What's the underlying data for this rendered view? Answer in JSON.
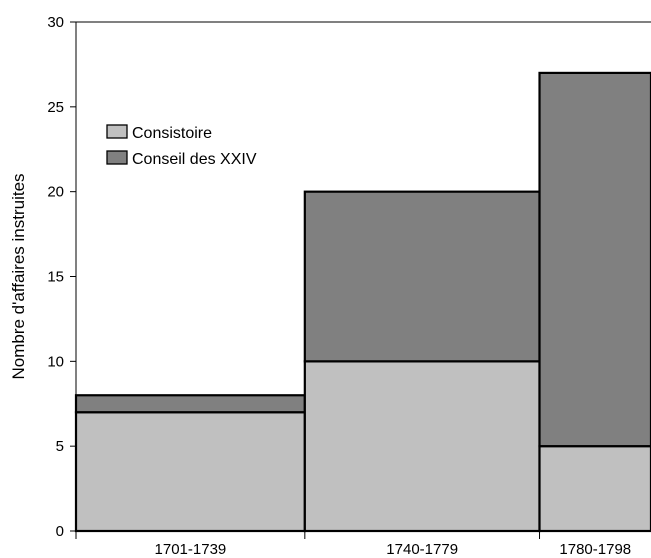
{
  "chart_data": {
    "type": "bar",
    "stacked": true,
    "categories": [
      "1701-1739",
      "1740-1779",
      "1780-1798"
    ],
    "category_spans_years": [
      39,
      40,
      19
    ],
    "series": [
      {
        "name": "Consistoire",
        "values": [
          7,
          10,
          5
        ],
        "color": "#c0c0c0"
      },
      {
        "name": "Conseil des XXIV",
        "values": [
          1,
          10,
          22
        ],
        "color": "#808080"
      }
    ],
    "ylabel": "Nombre d'affaires instruites",
    "ylim": [
      0,
      30
    ],
    "yticks": [
      0,
      5,
      10,
      15,
      20,
      25,
      30
    ],
    "grid": false,
    "legend_position": "top-left"
  }
}
